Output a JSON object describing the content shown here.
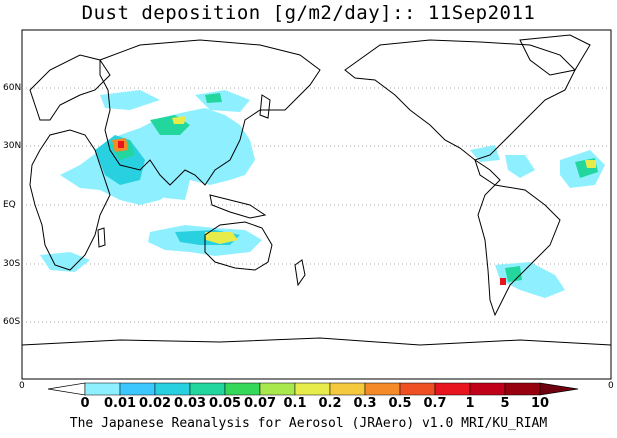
{
  "title": "Dust deposition [g/m2/day]:: 11Sep2011",
  "lat_labels": [
    "60N",
    "30N",
    "EQ",
    "30S",
    "60S"
  ],
  "lon_labels": {
    "left": "0",
    "right": "0"
  },
  "colorbar": {
    "ticks": [
      "0",
      "0.01",
      "0.02",
      "0.03",
      "0.05",
      "0.07",
      "0.1",
      "0.2",
      "0.3",
      "0.5",
      "0.7",
      "1",
      "5",
      "10"
    ],
    "colors": [
      "#ffffff",
      "#8ef0ff",
      "#3cc8ff",
      "#28d0e0",
      "#22d69e",
      "#36d85a",
      "#a8e84c",
      "#e8ec4a",
      "#f5c93e",
      "#f58a28",
      "#ee5024",
      "#e8141e",
      "#c00018",
      "#96000f",
      "#6e0010"
    ]
  },
  "credit": "The Japanese Reanalysis for Aerosol (JRAero) v1.0 MRI/KU_RIAM",
  "field_description_colors": {
    "light": "#8ef0ff",
    "mid": "#28d0e0",
    "green": "#22d69e",
    "yellow": "#e8ec4a",
    "orange": "#f58a28",
    "red": "#e8141e"
  }
}
